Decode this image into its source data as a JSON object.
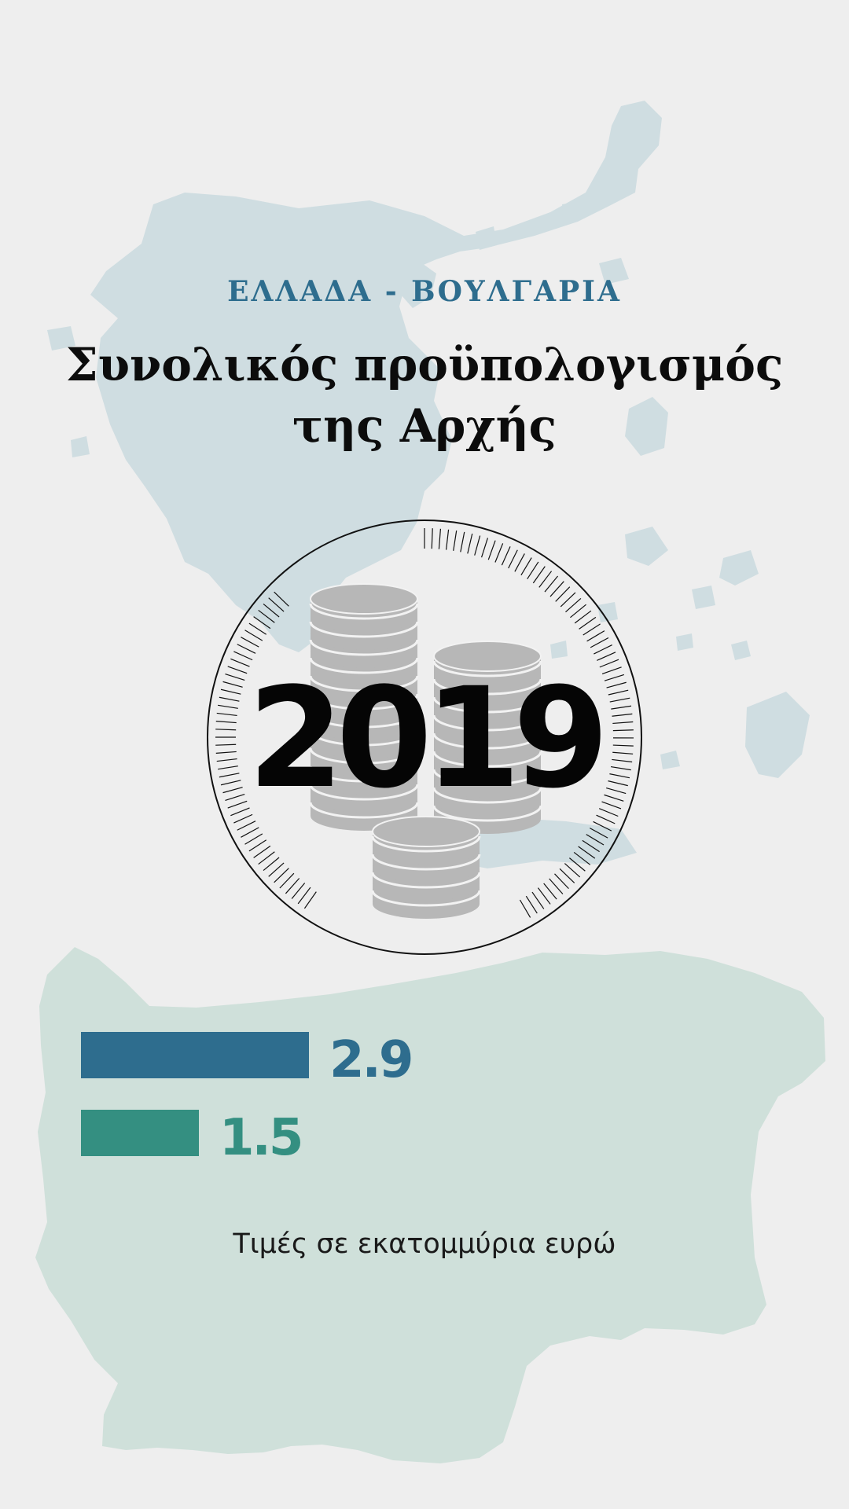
{
  "header": {
    "subtitle": "ΕΛΛΑΔΑ - ΒΟΥΛΓΑΡΙΑ",
    "title_lines": [
      "Συνολικός προϋπολογισμός",
      "της Αρχής"
    ]
  },
  "badge": {
    "year": "2019",
    "icon": "coins-stack-icon"
  },
  "footer": {
    "note": "Τιμές σε εκατομμύρια ευρώ"
  },
  "colors": {
    "background": "#eeeeee",
    "greece_map": "#cfdde1",
    "bulgaria_map": "#cfe0da",
    "series_1": "#2e6d8e",
    "series_2": "#348f81",
    "coins": "#b7b7b7",
    "coin_lines": "#f2f2f2",
    "ring": "#111111",
    "year_text": "#050505"
  },
  "chart_data": {
    "type": "bar",
    "orientation": "horizontal",
    "values": [
      2.9,
      1.5
    ],
    "value_labels": [
      "2.9",
      "1.5"
    ],
    "xlim": [
      0,
      2.9
    ],
    "xlabel": "",
    "ylabel": "",
    "grid": false,
    "legend": "none"
  }
}
